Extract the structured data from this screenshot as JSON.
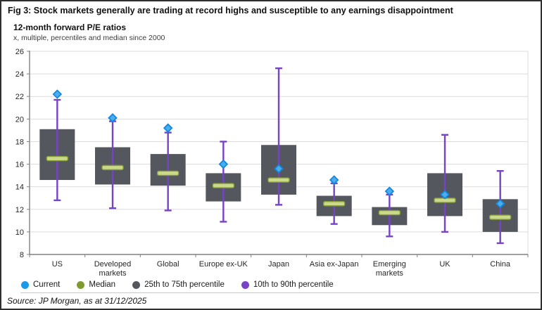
{
  "figure": {
    "title": "Fig 3: Stock markets generally are trading at record highs and susceptible to any earnings disappointment",
    "subtitle": "12-month forward P/E ratios",
    "axis_note": "x, multiple, percentiles and median since 2000",
    "source": "Source: JP Morgan, as at 31/12/2025"
  },
  "legend": {
    "items": [
      {
        "label": "Current",
        "color": "#1b9ae8"
      },
      {
        "label": "Median",
        "color": "#7f9b30"
      },
      {
        "label": "25th to 75th percentile",
        "color": "#55575e"
      },
      {
        "label": "10th to 90th percentile",
        "color": "#7b44c4"
      }
    ]
  },
  "colors": {
    "current_fill": "#4aaeee",
    "current_stroke": "#1288e0",
    "median_fill": "#ccd98c",
    "median_stroke": "#87a138",
    "box": "#55575e",
    "whisker": "#7643c6",
    "gridline": "#dcdcdc",
    "axis": "#808080",
    "text": "#262626"
  },
  "chart_data": {
    "type": "box",
    "title": "12-month forward P/E ratios",
    "subtitle": "x, multiple, percentiles and median since 2000",
    "ylim": [
      8,
      26
    ],
    "yticks": [
      8,
      10,
      12,
      14,
      16,
      18,
      20,
      22,
      24,
      26
    ],
    "grid": true,
    "legend_position": "bottom",
    "categories": [
      "US",
      "Developed markets",
      "Global",
      "Europe ex-UK",
      "Japan",
      "Asia ex-Japan",
      "Emerging markets",
      "UK",
      "China"
    ],
    "category_label_lines": [
      [
        "US"
      ],
      [
        "Developed",
        "markets"
      ],
      [
        "Global"
      ],
      [
        "Europe ex-UK"
      ],
      [
        "Japan"
      ],
      [
        "Asia ex-Japan"
      ],
      [
        "Emerging",
        "markets"
      ],
      [
        "UK"
      ],
      [
        "China"
      ]
    ],
    "series": {
      "current": [
        22.2,
        20.1,
        19.2,
        16.0,
        15.6,
        14.6,
        13.6,
        13.3,
        12.5
      ],
      "p90": [
        21.7,
        19.8,
        18.8,
        18.0,
        24.5,
        14.3,
        13.3,
        18.6,
        15.4
      ],
      "p75": [
        19.1,
        17.5,
        16.9,
        15.2,
        17.7,
        13.2,
        12.2,
        15.2,
        12.9
      ],
      "median": [
        16.5,
        15.7,
        15.2,
        14.1,
        14.6,
        12.5,
        11.7,
        12.8,
        11.3
      ],
      "p25": [
        14.6,
        14.2,
        14.1,
        12.7,
        13.3,
        11.4,
        10.6,
        11.4,
        10.0
      ],
      "p10": [
        12.8,
        12.1,
        11.9,
        10.9,
        12.4,
        10.7,
        9.6,
        10.0,
        9.0
      ]
    }
  }
}
